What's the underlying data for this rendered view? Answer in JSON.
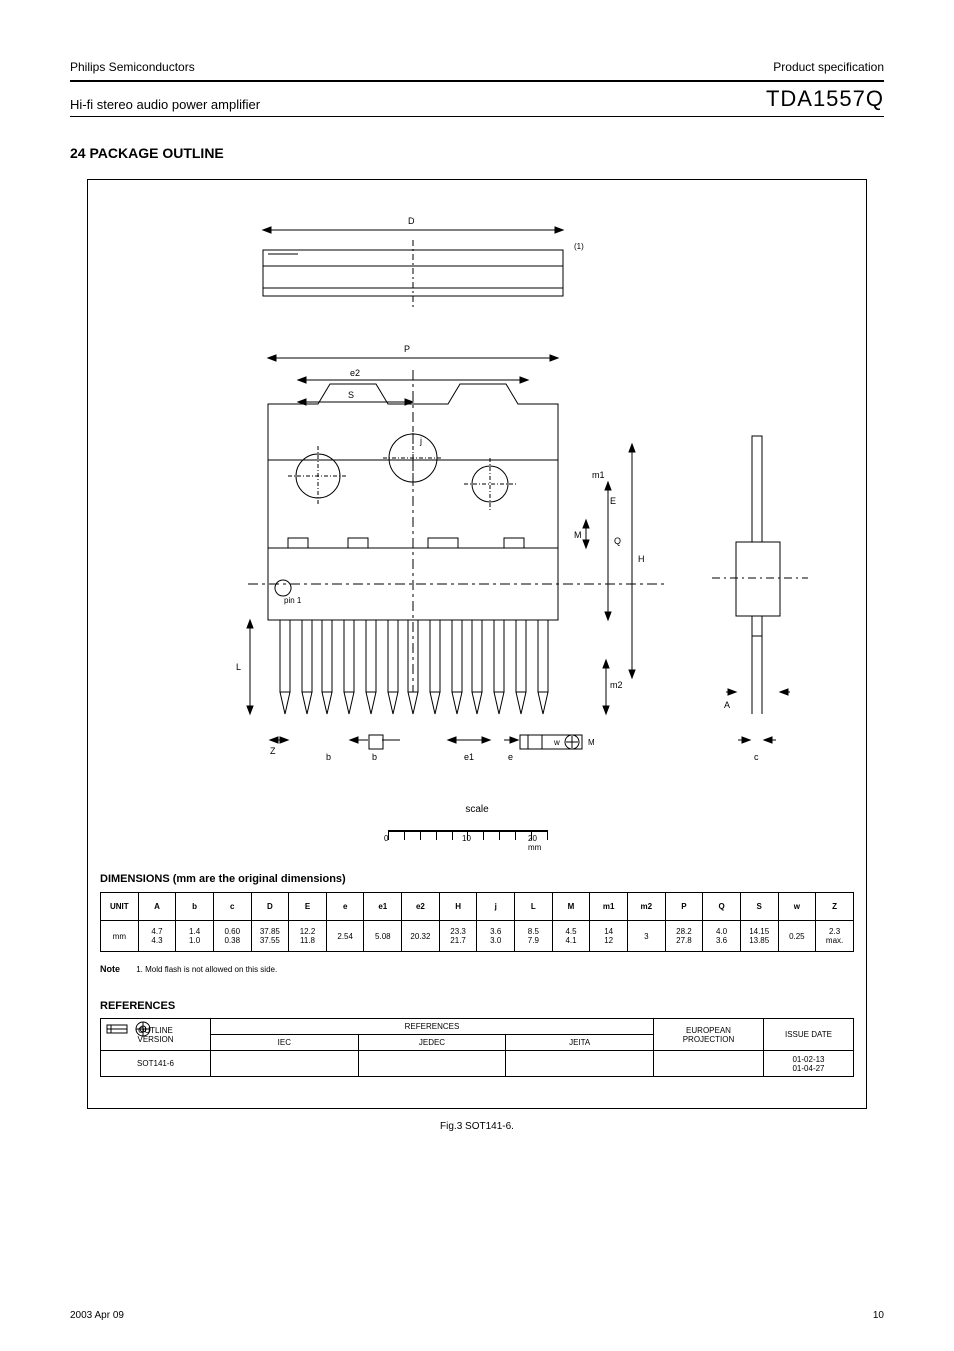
{
  "header": {
    "brand": "Philips Semiconductors",
    "brand_right": "Product specification",
    "title_left": "Hi-fi stereo audio power amplifier",
    "title_right": "TDA1557Q"
  },
  "page_title": "24  PACKAGE OUTLINE",
  "fig_title": "Fig.3  SOT141-6.",
  "scale": {
    "start": 0,
    "mid": 10,
    "end": "20 mm"
  },
  "unit_label": "scale",
  "dim_header": "DIMENSIONS (mm are the original dimensions)",
  "dim_cols": [
    "UNIT",
    "A",
    "b",
    "c",
    "D",
    "E",
    "e",
    "e1",
    "e2",
    "H",
    "j",
    "L",
    "M",
    "m1",
    "m2",
    "P",
    "Q",
    "S",
    "w",
    "Z"
  ],
  "dim_vals": [
    "mm",
    "4.7\n4.3",
    "1.4\n1.0",
    "0.60\n0.38",
    "37.85\n37.55",
    "12.2\n11.8",
    "2.54",
    "5.08",
    "20.32",
    "23.3\n21.7",
    "3.6\n3.0",
    "8.5\n7.9",
    "4.5\n4.1",
    "14\n12",
    "3",
    "28.2\n27.8",
    "4.0\n3.6",
    "14.15\n13.85",
    "0.25",
    "2.3\nmax."
  ],
  "note": {
    "left": "Note",
    "text": "1. Mold flash is not allowed on this side."
  },
  "ref_header": "REFERENCES",
  "ref_sub": "OUTLINE VERSION",
  "ref_cols1": [
    "OUTLINE\nVERSION",
    "IEC",
    "JEDEC",
    "JEITA"
  ],
  "ref_row_package": "SOT141-6",
  "ref_eur": "EUROPEAN\nPROJECTION",
  "ref_issue": "ISSUE DATE",
  "ref_issue_val": "01-02-13\n01-04-27",
  "footer": {
    "date": "2003 Apr 09",
    "page": "10"
  },
  "diagram": {
    "top_labels": {
      "D": "D",
      "L": "L",
      "M": "M",
      "m1": "m1",
      "P": "P",
      "e2": "e2",
      "j": "j",
      "Q": "Q",
      "H": "H",
      "E": "E",
      "Z": "Z",
      "m2": "m2",
      "b": "b",
      "e": "e",
      "e1": "e1",
      "c": "c",
      "A": "A",
      "w_circ": "w",
      "pin1": "pin 1",
      "note1": "(1)",
      "S": "S",
      "iec_sym": "M"
    },
    "colors": {
      "stroke": "#000000",
      "fill": "#ffffff"
    }
  }
}
